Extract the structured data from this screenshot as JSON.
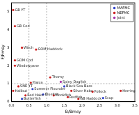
{
  "chart_data": {
    "type": "scatter",
    "x_label": "B/Bmsy",
    "y_label": "F/Fmsy",
    "xlim": [
      0,
      3.5
    ],
    "xticks": [
      {
        "value": 0,
        "label": "0.0"
      },
      0.5,
      {
        "value": 1,
        "label": "1.0"
      },
      1.5,
      {
        "value": 2,
        "label": "2.0"
      },
      2.5,
      {
        "value": 3,
        "label": "3.0"
      },
      3.5
    ],
    "ylim": [
      0,
      5.5
    ],
    "yticks": [
      0,
      1,
      2,
      3,
      4,
      5
    ],
    "grid": false,
    "legend": "top-right",
    "reference_lines": {
      "x": [
        0.5,
        1.0
      ],
      "y": [
        1
      ]
    },
    "series": [
      {
        "name": "MAFMC",
        "color": "#3344cc",
        "marker": "circle",
        "x": [
          0.9,
          0.6,
          1.5,
          0.3,
          2.6
        ],
        "values": [
          0.4,
          0.7,
          0.85,
          0.15,
          0.2
        ],
        "point_labels": [
          "Bluefish",
          "Summer Flounder",
          "Black Sea Bass",
          "Butterfish",
          "Scup"
        ]
      },
      {
        "name": "NEFMC",
        "color": "#cc2222",
        "marker": "circle",
        "x": [
          0.05,
          0.1,
          0.3,
          0.7,
          0.1,
          0.1,
          1.1,
          0.55,
          0.2,
          0.05,
          1.6,
          2.3,
          3.1,
          1.9,
          0.4,
          1.7,
          1.2
        ],
        "values": [
          5.1,
          4.2,
          3.0,
          2.9,
          2.3,
          2.0,
          1.35,
          1.05,
          0.85,
          0.6,
          0.25,
          0.55,
          0.6,
          0.15,
          0.35,
          0.6,
          0.35
        ],
        "point_labels": [
          "GB YT",
          "GB Cod",
          "Witch",
          "GOM Haddock",
          "GOM Cod",
          "Windowpane",
          "Thorny",
          "Plaice",
          "SNE YT",
          "Halibut",
          "Redfish",
          "Pollock",
          "Herring",
          "GB Haddock",
          "Red Hake",
          "Silver Hake",
          "Monkfish"
        ]
      },
      {
        "name": "Joint",
        "color": "#aa33aa",
        "marker": "circle",
        "x": [
          1.4
        ],
        "values": [
          1.1
        ],
        "point_labels": [
          "Spiny Dogfish"
        ]
      }
    ]
  }
}
